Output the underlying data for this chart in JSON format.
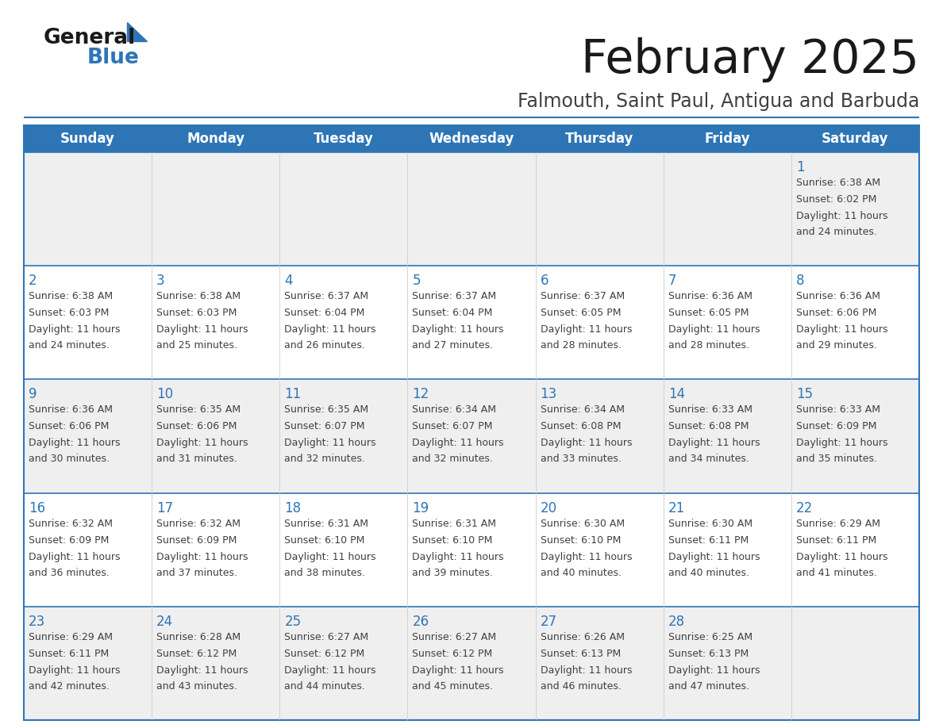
{
  "title": "February 2025",
  "subtitle": "Falmouth, Saint Paul, Antigua and Barbuda",
  "header_bg": "#2E75B6",
  "header_text_color": "#FFFFFF",
  "cell_bg_light": "#EFEFEF",
  "cell_bg_white": "#FFFFFF",
  "day_number_color": "#2E75B6",
  "text_color": "#404040",
  "border_color": "#2E75B6",
  "line_color": "#2E75B6",
  "days_of_week": [
    "Sunday",
    "Monday",
    "Tuesday",
    "Wednesday",
    "Thursday",
    "Friday",
    "Saturday"
  ],
  "weeks": [
    [
      {
        "day": null,
        "sunrise": null,
        "sunset": null,
        "daylight": null
      },
      {
        "day": null,
        "sunrise": null,
        "sunset": null,
        "daylight": null
      },
      {
        "day": null,
        "sunrise": null,
        "sunset": null,
        "daylight": null
      },
      {
        "day": null,
        "sunrise": null,
        "sunset": null,
        "daylight": null
      },
      {
        "day": null,
        "sunrise": null,
        "sunset": null,
        "daylight": null
      },
      {
        "day": null,
        "sunrise": null,
        "sunset": null,
        "daylight": null
      },
      {
        "day": 1,
        "sunrise": "6:38 AM",
        "sunset": "6:02 PM",
        "daylight": "11 hours and 24 minutes."
      }
    ],
    [
      {
        "day": 2,
        "sunrise": "6:38 AM",
        "sunset": "6:03 PM",
        "daylight": "11 hours and 24 minutes."
      },
      {
        "day": 3,
        "sunrise": "6:38 AM",
        "sunset": "6:03 PM",
        "daylight": "11 hours and 25 minutes."
      },
      {
        "day": 4,
        "sunrise": "6:37 AM",
        "sunset": "6:04 PM",
        "daylight": "11 hours and 26 minutes."
      },
      {
        "day": 5,
        "sunrise": "6:37 AM",
        "sunset": "6:04 PM",
        "daylight": "11 hours and 27 minutes."
      },
      {
        "day": 6,
        "sunrise": "6:37 AM",
        "sunset": "6:05 PM",
        "daylight": "11 hours and 28 minutes."
      },
      {
        "day": 7,
        "sunrise": "6:36 AM",
        "sunset": "6:05 PM",
        "daylight": "11 hours and 28 minutes."
      },
      {
        "day": 8,
        "sunrise": "6:36 AM",
        "sunset": "6:06 PM",
        "daylight": "11 hours and 29 minutes."
      }
    ],
    [
      {
        "day": 9,
        "sunrise": "6:36 AM",
        "sunset": "6:06 PM",
        "daylight": "11 hours and 30 minutes."
      },
      {
        "day": 10,
        "sunrise": "6:35 AM",
        "sunset": "6:06 PM",
        "daylight": "11 hours and 31 minutes."
      },
      {
        "day": 11,
        "sunrise": "6:35 AM",
        "sunset": "6:07 PM",
        "daylight": "11 hours and 32 minutes."
      },
      {
        "day": 12,
        "sunrise": "6:34 AM",
        "sunset": "6:07 PM",
        "daylight": "11 hours and 32 minutes."
      },
      {
        "day": 13,
        "sunrise": "6:34 AM",
        "sunset": "6:08 PM",
        "daylight": "11 hours and 33 minutes."
      },
      {
        "day": 14,
        "sunrise": "6:33 AM",
        "sunset": "6:08 PM",
        "daylight": "11 hours and 34 minutes."
      },
      {
        "day": 15,
        "sunrise": "6:33 AM",
        "sunset": "6:09 PM",
        "daylight": "11 hours and 35 minutes."
      }
    ],
    [
      {
        "day": 16,
        "sunrise": "6:32 AM",
        "sunset": "6:09 PM",
        "daylight": "11 hours and 36 minutes."
      },
      {
        "day": 17,
        "sunrise": "6:32 AM",
        "sunset": "6:09 PM",
        "daylight": "11 hours and 37 minutes."
      },
      {
        "day": 18,
        "sunrise": "6:31 AM",
        "sunset": "6:10 PM",
        "daylight": "11 hours and 38 minutes."
      },
      {
        "day": 19,
        "sunrise": "6:31 AM",
        "sunset": "6:10 PM",
        "daylight": "11 hours and 39 minutes."
      },
      {
        "day": 20,
        "sunrise": "6:30 AM",
        "sunset": "6:10 PM",
        "daylight": "11 hours and 40 minutes."
      },
      {
        "day": 21,
        "sunrise": "6:30 AM",
        "sunset": "6:11 PM",
        "daylight": "11 hours and 40 minutes."
      },
      {
        "day": 22,
        "sunrise": "6:29 AM",
        "sunset": "6:11 PM",
        "daylight": "11 hours and 41 minutes."
      }
    ],
    [
      {
        "day": 23,
        "sunrise": "6:29 AM",
        "sunset": "6:11 PM",
        "daylight": "11 hours and 42 minutes."
      },
      {
        "day": 24,
        "sunrise": "6:28 AM",
        "sunset": "6:12 PM",
        "daylight": "11 hours and 43 minutes."
      },
      {
        "day": 25,
        "sunrise": "6:27 AM",
        "sunset": "6:12 PM",
        "daylight": "11 hours and 44 minutes."
      },
      {
        "day": 26,
        "sunrise": "6:27 AM",
        "sunset": "6:12 PM",
        "daylight": "11 hours and 45 minutes."
      },
      {
        "day": 27,
        "sunrise": "6:26 AM",
        "sunset": "6:13 PM",
        "daylight": "11 hours and 46 minutes."
      },
      {
        "day": 28,
        "sunrise": "6:25 AM",
        "sunset": "6:13 PM",
        "daylight": "11 hours and 47 minutes."
      },
      {
        "day": null,
        "sunrise": null,
        "sunset": null,
        "daylight": null
      }
    ]
  ]
}
